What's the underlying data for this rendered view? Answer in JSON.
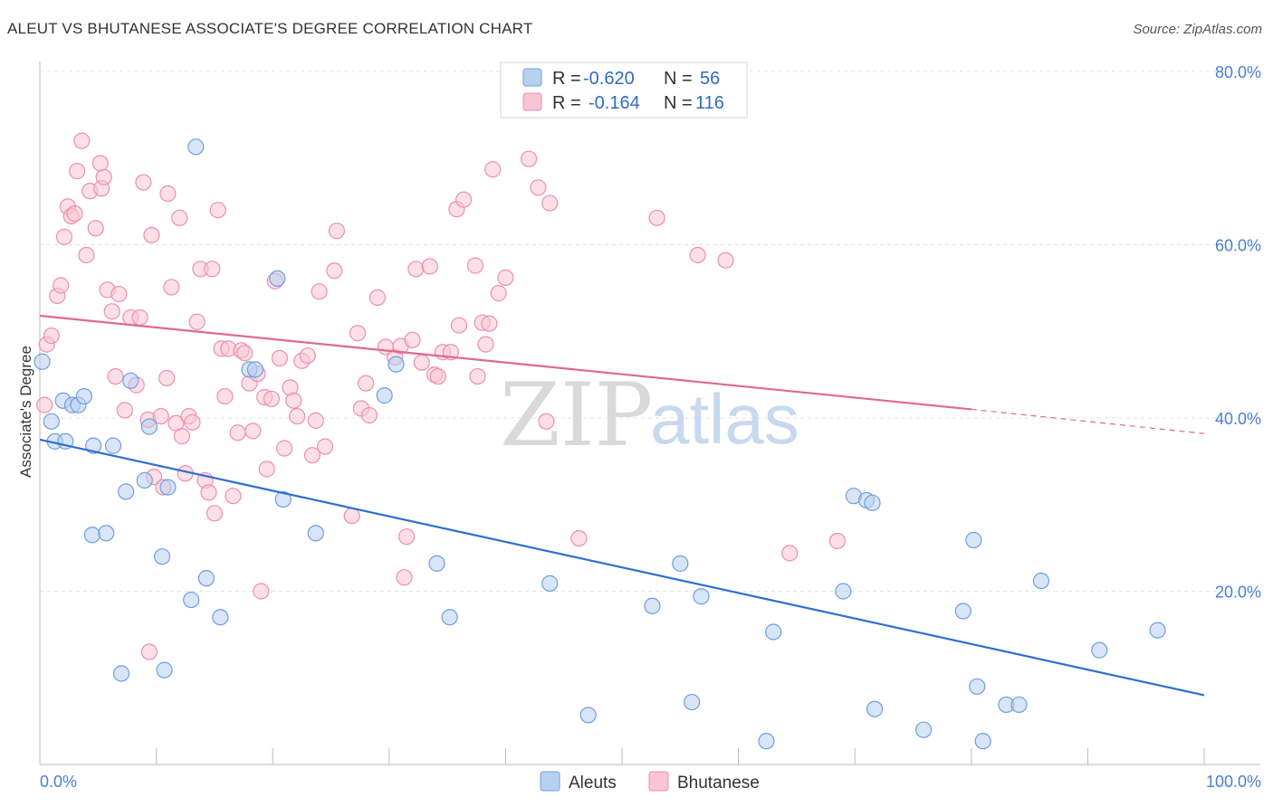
{
  "title": "ALEUT VS BHUTANESE ASSOCIATE'S DEGREE CORRELATION CHART",
  "source": "Source: ZipAtlas.com",
  "watermark": {
    "zip": "ZIP",
    "atlas": "atlas"
  },
  "colors": {
    "aleut_fill": "#b8d0f0",
    "aleut_stroke": "#6f9fde",
    "aleut_line": "#2f6fd0",
    "bhutanese_fill": "#f9c4d4",
    "bhutanese_stroke": "#ec8fae",
    "bhutanese_line": "#e0688f",
    "tick": "#4a7fd0",
    "grid": "#e3e3e3"
  },
  "legend": {
    "rows": [
      {
        "r_label": "R =",
        "r_value": "-0.620",
        "n_label": "N =",
        "n_value": "56"
      },
      {
        "r_label": "R =",
        "r_value": "-0.164",
        "n_label": "N =",
        "n_value": "116"
      }
    ]
  },
  "chart_data": {
    "type": "scatter",
    "xlabel": "",
    "ylabel": "Associate's Degree",
    "xlim": [
      0,
      100
    ],
    "ylim": [
      0,
      80
    ],
    "x_ticks": [
      "0.0%",
      "100.0%"
    ],
    "y_ticks": [
      "20.0%",
      "40.0%",
      "60.0%",
      "80.0%"
    ],
    "y_tick_values": [
      20,
      40,
      60,
      80
    ],
    "series": [
      {
        "name": "Aleuts",
        "r": -0.62,
        "n": 56,
        "trend": {
          "x0": 0,
          "y0": 37.5,
          "x1": 100,
          "y1": 8.0
        },
        "points": [
          [
            0.2,
            46.5
          ],
          [
            1.0,
            39.6
          ],
          [
            1.3,
            37.3
          ],
          [
            2.0,
            42.0
          ],
          [
            2.2,
            37.3
          ],
          [
            2.8,
            41.5
          ],
          [
            3.3,
            41.5
          ],
          [
            3.8,
            42.5
          ],
          [
            4.6,
            36.8
          ],
          [
            4.5,
            26.5
          ],
          [
            5.7,
            26.7
          ],
          [
            6.3,
            36.8
          ],
          [
            7.0,
            10.5
          ],
          [
            7.4,
            31.5
          ],
          [
            7.8,
            44.3
          ],
          [
            9.0,
            32.8
          ],
          [
            9.4,
            39.0
          ],
          [
            10.5,
            24.0
          ],
          [
            10.7,
            10.9
          ],
          [
            11.0,
            32.0
          ],
          [
            13.0,
            19.0
          ],
          [
            13.4,
            71.3
          ],
          [
            14.3,
            21.5
          ],
          [
            15.5,
            17.0
          ],
          [
            18.0,
            45.6
          ],
          [
            18.5,
            45.6
          ],
          [
            20.4,
            56.1
          ],
          [
            20.9,
            30.6
          ],
          [
            23.7,
            26.7
          ],
          [
            30.6,
            46.2
          ],
          [
            29.6,
            42.6
          ],
          [
            34.1,
            23.2
          ],
          [
            35.2,
            17.0
          ],
          [
            43.8,
            20.9
          ],
          [
            47.1,
            5.7
          ],
          [
            52.6,
            18.3
          ],
          [
            55.0,
            23.2
          ],
          [
            56.0,
            7.2
          ],
          [
            56.8,
            19.4
          ],
          [
            62.4,
            2.7
          ],
          [
            63.0,
            15.3
          ],
          [
            69.0,
            20.0
          ],
          [
            69.9,
            31.0
          ],
          [
            71.0,
            30.5
          ],
          [
            71.5,
            30.2
          ],
          [
            71.7,
            6.4
          ],
          [
            75.9,
            4.0
          ],
          [
            79.3,
            17.7
          ],
          [
            80.2,
            25.9
          ],
          [
            80.5,
            9.0
          ],
          [
            81.0,
            2.7
          ],
          [
            83.0,
            6.9
          ],
          [
            84.1,
            6.9
          ],
          [
            86.0,
            21.2
          ],
          [
            91.0,
            13.2
          ],
          [
            96.0,
            15.5
          ]
        ]
      },
      {
        "name": "Bhutanese",
        "r": -0.164,
        "n": 116,
        "trend": {
          "x0": 0,
          "y0": 51.8,
          "x1": 80,
          "y1": 41.0
        },
        "trend_dashed": {
          "x0": 80,
          "y0": 41.0,
          "x1": 100,
          "y1": 38.2
        },
        "points": [
          [
            0.4,
            41.5
          ],
          [
            0.6,
            48.5
          ],
          [
            1.0,
            49.5
          ],
          [
            1.5,
            54.1
          ],
          [
            1.8,
            55.3
          ],
          [
            2.1,
            60.9
          ],
          [
            2.4,
            64.4
          ],
          [
            2.7,
            63.3
          ],
          [
            3.0,
            63.6
          ],
          [
            3.2,
            68.5
          ],
          [
            3.6,
            72.0
          ],
          [
            4.0,
            58.8
          ],
          [
            4.3,
            66.2
          ],
          [
            4.8,
            61.9
          ],
          [
            5.2,
            69.4
          ],
          [
            5.3,
            66.5
          ],
          [
            5.5,
            67.8
          ],
          [
            5.8,
            54.8
          ],
          [
            6.2,
            52.3
          ],
          [
            6.5,
            44.8
          ],
          [
            6.8,
            54.3
          ],
          [
            7.3,
            40.9
          ],
          [
            7.8,
            51.6
          ],
          [
            8.3,
            43.8
          ],
          [
            8.6,
            51.6
          ],
          [
            8.9,
            67.2
          ],
          [
            9.3,
            39.8
          ],
          [
            9.6,
            61.1
          ],
          [
            9.8,
            33.2
          ],
          [
            10.4,
            40.2
          ],
          [
            10.6,
            32.0
          ],
          [
            10.9,
            44.6
          ],
          [
            11.0,
            65.9
          ],
          [
            11.3,
            55.1
          ],
          [
            11.7,
            39.4
          ],
          [
            12.0,
            63.1
          ],
          [
            12.2,
            37.9
          ],
          [
            12.5,
            33.6
          ],
          [
            12.8,
            40.2
          ],
          [
            13.1,
            39.5
          ],
          [
            13.5,
            51.1
          ],
          [
            13.8,
            57.2
          ],
          [
            14.2,
            32.8
          ],
          [
            14.5,
            31.4
          ],
          [
            15.0,
            29.0
          ],
          [
            15.3,
            64.0
          ],
          [
            15.6,
            48.0
          ],
          [
            15.9,
            42.5
          ],
          [
            16.2,
            48.0
          ],
          [
            16.6,
            31.0
          ],
          [
            17.0,
            38.3
          ],
          [
            17.3,
            47.8
          ],
          [
            17.6,
            47.5
          ],
          [
            18.0,
            44.0
          ],
          [
            18.3,
            38.5
          ],
          [
            18.7,
            45.1
          ],
          [
            19.0,
            20.0
          ],
          [
            19.3,
            42.4
          ],
          [
            19.5,
            34.1
          ],
          [
            19.9,
            42.2
          ],
          [
            20.2,
            55.8
          ],
          [
            20.6,
            46.9
          ],
          [
            21.0,
            36.5
          ],
          [
            21.5,
            43.5
          ],
          [
            21.8,
            42.0
          ],
          [
            22.1,
            40.2
          ],
          [
            22.5,
            46.6
          ],
          [
            23.0,
            47.2
          ],
          [
            23.4,
            35.7
          ],
          [
            23.7,
            39.7
          ],
          [
            24.0,
            54.6
          ],
          [
            24.5,
            36.7
          ],
          [
            25.3,
            57.0
          ],
          [
            25.5,
            61.6
          ],
          [
            26.8,
            28.7
          ],
          [
            27.3,
            49.8
          ],
          [
            27.6,
            41.1
          ],
          [
            28.0,
            44.0
          ],
          [
            28.3,
            40.3
          ],
          [
            29.0,
            53.9
          ],
          [
            29.7,
            48.2
          ],
          [
            30.5,
            47.0
          ],
          [
            31.0,
            48.3
          ],
          [
            31.3,
            21.6
          ],
          [
            31.5,
            26.3
          ],
          [
            32.0,
            49.0
          ],
          [
            32.3,
            57.2
          ],
          [
            32.8,
            46.4
          ],
          [
            33.5,
            57.5
          ],
          [
            33.9,
            45.0
          ],
          [
            34.2,
            44.8
          ],
          [
            34.6,
            47.6
          ],
          [
            35.3,
            47.6
          ],
          [
            35.8,
            64.1
          ],
          [
            36.0,
            50.7
          ],
          [
            36.4,
            65.2
          ],
          [
            37.4,
            57.6
          ],
          [
            37.6,
            44.8
          ],
          [
            38.0,
            51.0
          ],
          [
            38.3,
            48.5
          ],
          [
            38.6,
            50.9
          ],
          [
            38.9,
            68.7
          ],
          [
            39.4,
            54.4
          ],
          [
            40.0,
            56.2
          ],
          [
            42.0,
            69.9
          ],
          [
            42.8,
            66.6
          ],
          [
            43.5,
            39.6
          ],
          [
            43.8,
            64.8
          ],
          [
            46.3,
            26.1
          ],
          [
            53.0,
            63.1
          ],
          [
            58.9,
            58.2
          ],
          [
            64.4,
            24.4
          ],
          [
            68.5,
            25.8
          ],
          [
            56.5,
            58.8
          ],
          [
            14.8,
            57.2
          ],
          [
            9.4,
            13.0
          ]
        ]
      }
    ]
  }
}
